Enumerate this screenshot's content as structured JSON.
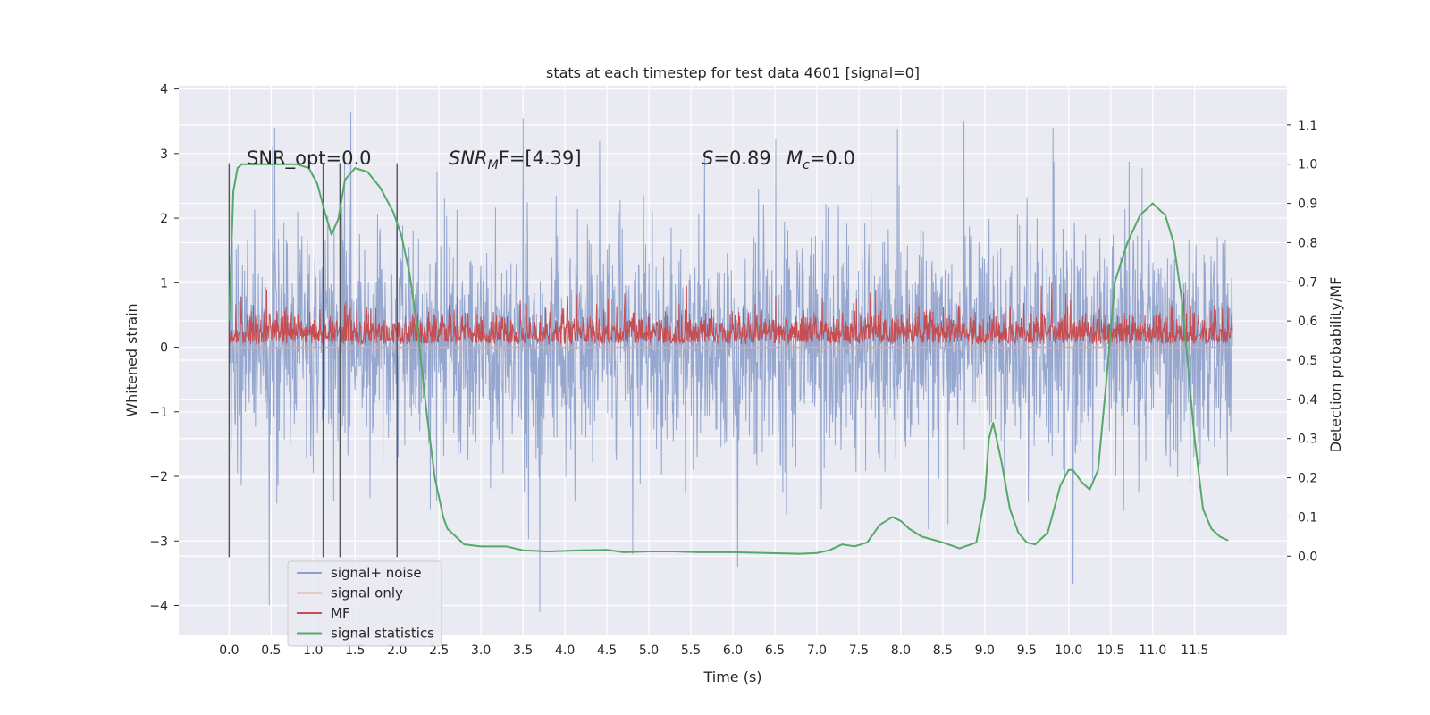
{
  "chart_data": {
    "type": "line",
    "title": "stats at each timestep for test data 4601 [signal=0]",
    "xlabel": "Time (s)",
    "ylabel": "Whitened strain",
    "y2label": "Detection probability/MF",
    "xlim": [
      -0.6,
      12.6
    ],
    "ylim": [
      -4.45,
      4.05
    ],
    "y2lim": [
      -0.2,
      1.2
    ],
    "x_ticks": [
      0.0,
      0.5,
      1.0,
      1.5,
      2.0,
      2.5,
      3.0,
      3.5,
      4.0,
      4.5,
      5.0,
      5.5,
      6.0,
      6.5,
      7.0,
      7.5,
      8.0,
      8.5,
      9.0,
      9.5,
      10.0,
      10.5,
      11.0,
      11.5
    ],
    "x_tick_labels": [
      "0.0",
      "0.5",
      "1.0",
      "1.5",
      "2.0",
      "2.5",
      "3.0",
      "3.5",
      "4.0",
      "4.5",
      "5.0",
      "5.5",
      "6.0",
      "6.5",
      "7.0",
      "7.5",
      "8.0",
      "8.5",
      "9.0",
      "9.5",
      "10.0",
      "10.5",
      "11.0",
      "11.5"
    ],
    "y_ticks": [
      4,
      3,
      2,
      1,
      0,
      -1,
      -2,
      -3,
      -4
    ],
    "y_tick_labels": [
      "4",
      "3",
      "2",
      "1",
      "0",
      "−1",
      "−2",
      "−3",
      "−4"
    ],
    "y2_ticks": [
      1.1,
      1.0,
      0.9,
      0.8,
      0.7,
      0.6,
      0.5,
      0.4,
      0.3,
      0.2,
      0.1,
      0.0
    ],
    "y2_tick_labels": [
      "1.1",
      "1.0",
      "0.9",
      "0.8",
      "0.7",
      "0.6",
      "0.5",
      "0.4",
      "0.3",
      "0.2",
      "0.1",
      "0.0"
    ],
    "grid": true,
    "legend_position": "lower-left",
    "annotations": {
      "snr_opt": "SNR_opt=0.0",
      "snr_mf_prefix": "SNR",
      "snr_mf_sub": "M",
      "snr_mf_suffix": "F=[4.39]",
      "s_name": "S",
      "s_value": "=0.89",
      "mc_name": "M",
      "mc_sub": "c",
      "mc_value": "=0.0"
    },
    "markers_x": [
      0.0,
      1.12,
      1.32,
      2.0
    ],
    "series": [
      {
        "name": "signal+ noise",
        "color": "#8da0cb",
        "axis": "left",
        "style": "dense-noise",
        "x_range": [
          0.0,
          11.95
        ],
        "typical_range": [
          -1.5,
          1.6
        ],
        "peaks": [
          [
            1.45,
            3.65
          ],
          [
            3.5,
            3.55
          ],
          [
            8.75,
            3.5
          ],
          [
            0.48,
            -4.0
          ],
          [
            3.7,
            -4.1
          ],
          [
            10.05,
            -3.65
          ]
        ]
      },
      {
        "name": "signal only",
        "color": "#e8a88c",
        "axis": "left",
        "x": [
          0.0,
          11.95
        ],
        "y": [
          0.0,
          0.0
        ]
      },
      {
        "name": "MF",
        "color": "#c44e52",
        "axis": "left",
        "style": "dense-noise",
        "x_range": [
          0.0,
          11.95
        ],
        "typical_range": [
          0.05,
          0.55
        ],
        "peaks": [
          [
            0.45,
            0.88
          ],
          [
            5.45,
            0.95
          ],
          [
            9.8,
            1.0
          ]
        ]
      },
      {
        "name": "signal statistics",
        "color": "#55a868",
        "axis": "right",
        "x": [
          0.0,
          0.05,
          0.1,
          0.15,
          0.3,
          0.5,
          0.8,
          0.95,
          1.05,
          1.15,
          1.22,
          1.3,
          1.38,
          1.5,
          1.65,
          1.8,
          1.95,
          2.05,
          2.15,
          2.25,
          2.35,
          2.45,
          2.55,
          2.6,
          2.7,
          2.8,
          3.0,
          3.3,
          3.5,
          3.8,
          4.2,
          4.5,
          4.7,
          5.0,
          5.3,
          5.6,
          6.0,
          6.4,
          6.8,
          7.0,
          7.15,
          7.3,
          7.45,
          7.6,
          7.75,
          7.9,
          8.0,
          8.1,
          8.25,
          8.5,
          8.7,
          8.9,
          9.0,
          9.05,
          9.1,
          9.2,
          9.3,
          9.4,
          9.5,
          9.6,
          9.75,
          9.9,
          10.0,
          10.05,
          10.15,
          10.25,
          10.35,
          10.45,
          10.55,
          10.7,
          10.85,
          11.0,
          11.15,
          11.25,
          11.35,
          11.5,
          11.6,
          11.7,
          11.8,
          11.9
        ],
        "y": [
          0.6,
          0.93,
          0.99,
          1.0,
          1.0,
          1.0,
          1.0,
          0.99,
          0.95,
          0.87,
          0.82,
          0.86,
          0.96,
          0.99,
          0.98,
          0.94,
          0.88,
          0.82,
          0.72,
          0.57,
          0.37,
          0.2,
          0.1,
          0.07,
          0.05,
          0.03,
          0.025,
          0.025,
          0.015,
          0.012,
          0.015,
          0.016,
          0.01,
          0.012,
          0.012,
          0.01,
          0.01,
          0.008,
          0.006,
          0.008,
          0.015,
          0.03,
          0.025,
          0.035,
          0.08,
          0.1,
          0.09,
          0.07,
          0.05,
          0.035,
          0.02,
          0.035,
          0.15,
          0.3,
          0.34,
          0.24,
          0.12,
          0.06,
          0.035,
          0.03,
          0.06,
          0.18,
          0.22,
          0.22,
          0.19,
          0.17,
          0.22,
          0.45,
          0.7,
          0.8,
          0.87,
          0.9,
          0.87,
          0.8,
          0.65,
          0.3,
          0.12,
          0.07,
          0.05,
          0.04
        ]
      }
    ]
  }
}
